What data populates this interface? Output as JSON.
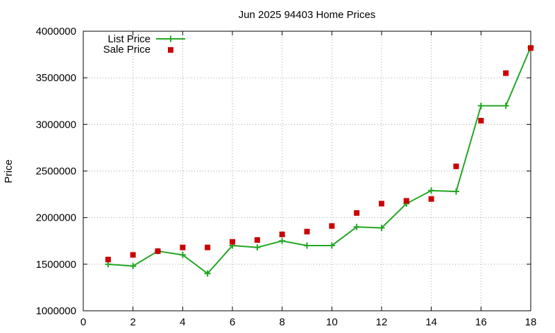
{
  "chart_data": {
    "type": "line",
    "title": "Jun 2025 94403 Home Prices",
    "xlabel": "",
    "ylabel": "Price",
    "xlim": [
      0,
      18
    ],
    "ylim": [
      1000000,
      4000000
    ],
    "x_ticks": [
      0,
      2,
      4,
      6,
      8,
      10,
      12,
      14,
      16,
      18
    ],
    "y_ticks": [
      1000000,
      1500000,
      2000000,
      2500000,
      3000000,
      3500000,
      4000000
    ],
    "grid": true,
    "legend_position": "top-left",
    "series": [
      {
        "name": "List Price",
        "style": "line-with-plus-markers",
        "color": "#22a622",
        "x": [
          1,
          2,
          3,
          4,
          5,
          6,
          7,
          8,
          9,
          10,
          11,
          12,
          13,
          14,
          15,
          16,
          17,
          18
        ],
        "values": [
          1500000,
          1480000,
          1640000,
          1600000,
          1400000,
          1700000,
          1680000,
          1750000,
          1700000,
          1700000,
          1900000,
          1890000,
          2150000,
          2290000,
          2280000,
          3200000,
          3200000,
          3830000
        ]
      },
      {
        "name": "Sale Price",
        "style": "square-markers",
        "color": "#cc0000",
        "x": [
          1,
          2,
          3,
          4,
          5,
          6,
          7,
          8,
          9,
          10,
          11,
          12,
          13,
          14,
          15,
          16,
          17,
          18
        ],
        "values": [
          1550000,
          1600000,
          1640000,
          1680000,
          1680000,
          1740000,
          1760000,
          1820000,
          1850000,
          1910000,
          2050000,
          2150000,
          2180000,
          2200000,
          2550000,
          3040000,
          3550000,
          3820000
        ]
      }
    ]
  }
}
